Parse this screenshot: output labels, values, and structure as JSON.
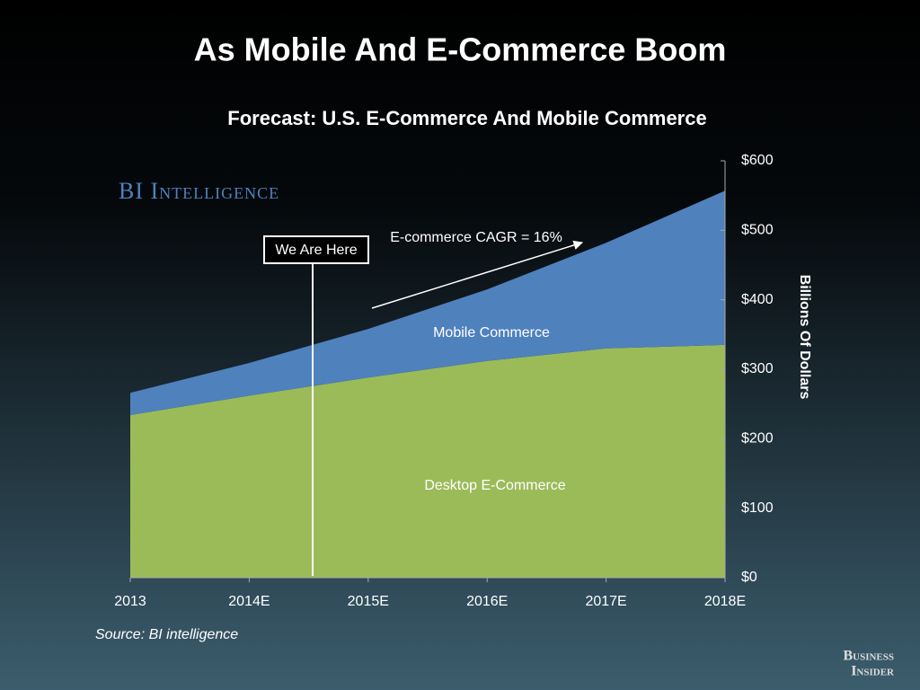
{
  "chart_data": {
    "type": "stacked_area",
    "title": "As Mobile And E-Commerce Boom",
    "subtitle": "Forecast: U.S. E-Commerce And Mobile Commerce",
    "categories": [
      "2013",
      "2014E",
      "2015E",
      "2016E",
      "2017E",
      "2018E"
    ],
    "series": [
      {
        "name": "Desktop E-Commerce",
        "color": "#9bbb59",
        "values": [
          234,
          262,
          288,
          312,
          330,
          335
        ]
      },
      {
        "name": "Mobile Commerce",
        "color": "#4f81bd",
        "values": [
          32,
          47,
          70,
          103,
          152,
          222
        ]
      }
    ],
    "ylim": [
      0,
      600
    ],
    "yticks": [
      {
        "value": 0,
        "label": "$0"
      },
      {
        "value": 100,
        "label": "$100"
      },
      {
        "value": 200,
        "label": "$200"
      },
      {
        "value": 300,
        "label": "$300"
      },
      {
        "value": 400,
        "label": "$400"
      },
      {
        "value": 500,
        "label": "$500"
      },
      {
        "value": 600,
        "label": "$600"
      }
    ],
    "y_axis_label": "Billions Of Dollars",
    "y_axis_side": "right",
    "annotations": {
      "marker": "We Are Here",
      "growth": "E-commerce CAGR = 16%"
    },
    "source": "Source: BI intelligence",
    "branding": {
      "top": "BI Intelligence",
      "bottom": [
        "Business",
        "Insider"
      ]
    }
  }
}
